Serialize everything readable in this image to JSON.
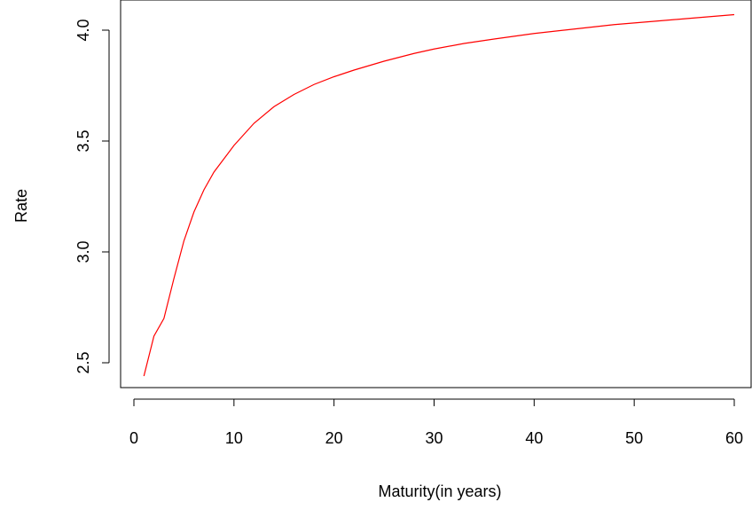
{
  "chart_data": {
    "type": "line",
    "title": "",
    "xlabel": "Maturity(in years)",
    "ylabel": "Rate",
    "xlim": [
      0,
      60
    ],
    "ylim": [
      2.44,
      4.07
    ],
    "xticks": [
      0,
      10,
      20,
      30,
      40,
      50,
      60
    ],
    "yticks": [
      2.5,
      3.0,
      3.5,
      4.0
    ],
    "xtick_labels": [
      "0",
      "10",
      "20",
      "30",
      "40",
      "50",
      "60"
    ],
    "ytick_labels": [
      "2.5",
      "3.0",
      "3.5",
      "4.0"
    ],
    "grid": false,
    "legend": "none",
    "series": [
      {
        "color": "#ff0000",
        "x": [
          1,
          2,
          3,
          4,
          5,
          6,
          7,
          8,
          9,
          10,
          12,
          14,
          16,
          18,
          20,
          22,
          25,
          28,
          30,
          33,
          36,
          40,
          44,
          48,
          52,
          56,
          60
        ],
        "y": [
          2.44,
          2.62,
          2.7,
          2.88,
          3.05,
          3.18,
          3.28,
          3.36,
          3.42,
          3.48,
          3.58,
          3.655,
          3.71,
          3.755,
          3.79,
          3.82,
          3.86,
          3.895,
          3.915,
          3.94,
          3.96,
          3.985,
          4.005,
          4.025,
          4.04,
          4.055,
          4.07
        ]
      }
    ]
  }
}
